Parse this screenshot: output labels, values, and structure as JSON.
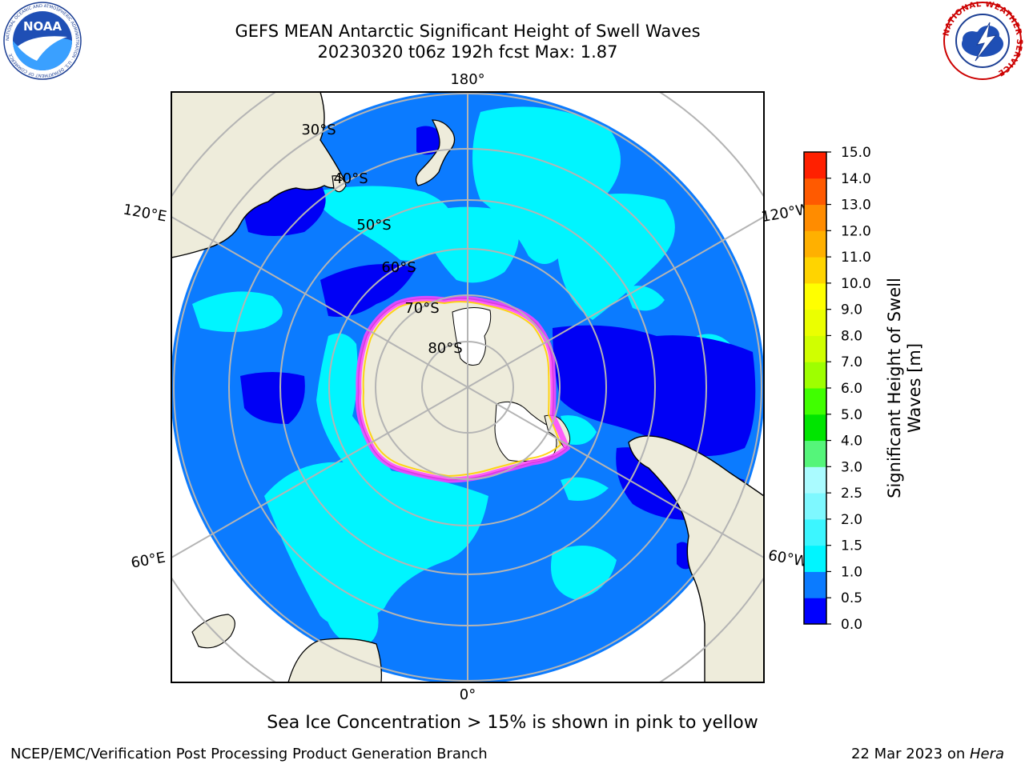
{
  "header": {
    "title_line1": "GEFS MEAN Antarctic Significant Height of Swell Waves",
    "title_line2": "20230320 t06z 192h fcst   Max: 1.87"
  },
  "logos": {
    "left": {
      "name": "noaa-logo",
      "text": "NOAA",
      "ring_text": "NATIONAL OCEANIC AND ATMOSPHERIC ADMINISTRATION · U.S. DEPARTMENT OF COMMERCE"
    },
    "right": {
      "name": "nws-logo",
      "ring_text": "NATIONAL WEATHER SERVICE"
    }
  },
  "map": {
    "projection": "south-polar-stereographic",
    "longitude_labels": {
      "top": "180°",
      "bottom": "0°",
      "upper_left": "120°E",
      "upper_right": "120°W",
      "lower_left": "60°E",
      "lower_right": "60°W"
    },
    "latitude_labels": [
      "30°S",
      "40°S",
      "50°S",
      "60°S",
      "70°S",
      "80°S"
    ],
    "colors": {
      "land": "#eeecdb",
      "ocean_fill": "#0b7bff",
      "deep_blue": "#0000f5",
      "cyan": "#00f5ff",
      "light_cyan": "#3cf6ff",
      "ice_pink": "#ff44ff",
      "ice_yellow": "#ffd000",
      "ice_white": "#ffffff",
      "grid": "#b4b4b4",
      "coast": "#000000"
    }
  },
  "colorbar": {
    "label": "Significant Height of Swell Waves [m]",
    "ticks": [
      "0.0",
      "0.5",
      "1.0",
      "1.5",
      "2.0",
      "2.5",
      "3.0",
      "4.0",
      "5.0",
      "6.0",
      "7.0",
      "8.0",
      "9.0",
      "10.0",
      "11.0",
      "12.0",
      "13.0",
      "14.0",
      "15.0"
    ],
    "colors": [
      "#0000ff",
      "#0b7bff",
      "#00f5ff",
      "#3cf6ff",
      "#7ef8ff",
      "#aafbff",
      "#55f57a",
      "#00e500",
      "#40ff00",
      "#9eff00",
      "#d0ff00",
      "#ebff00",
      "#ffff00",
      "#ffd400",
      "#ffb000",
      "#ff8c00",
      "#ff5a00",
      "#ff2000"
    ]
  },
  "note": "Sea Ice Concentration > 15% is shown in pink to yellow",
  "footer": {
    "left": "NCEP/EMC/Verification Post Processing Product Generation Branch",
    "right_prefix": "22 Mar 2023 on ",
    "right_italic": "Hera"
  }
}
